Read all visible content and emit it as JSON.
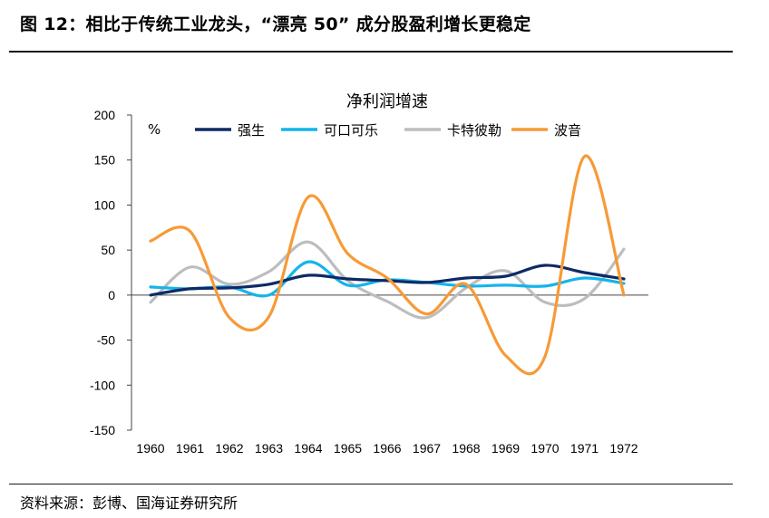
{
  "figure_title": "图 12：相比于传统工业龙头，“漂亮 50” 成分股盈利增长更稳定",
  "source": "资料来源：彭博、国海证券研究所",
  "chart_data": {
    "type": "line",
    "title": "净利润增速",
    "ylabel": "%",
    "ylim": [
      -150,
      200
    ],
    "yticks": [
      200,
      150,
      100,
      50,
      0,
      -50,
      -100,
      -150
    ],
    "x": [
      "1960",
      "1961",
      "1962",
      "1963",
      "1964",
      "1965",
      "1966",
      "1967",
      "1968",
      "1969",
      "1970",
      "1971",
      "1972"
    ],
    "legend_position": "top",
    "grid": false,
    "series": [
      {
        "name": "强生",
        "color": "#0d2a66",
        "values": [
          0,
          7,
          8,
          12,
          22,
          18,
          16,
          14,
          19,
          21,
          33,
          25,
          18
        ]
      },
      {
        "name": "可口可乐",
        "color": "#14b4ec",
        "values": [
          9,
          7,
          9,
          0,
          37,
          11,
          17,
          14,
          10,
          11,
          10,
          19,
          13
        ]
      },
      {
        "name": "卡特彼勒",
        "color": "#bdbdbd",
        "values": [
          -8,
          31,
          12,
          26,
          59,
          16,
          -7,
          -25,
          8,
          27,
          -8,
          -4,
          51
        ]
      },
      {
        "name": "波音",
        "color": "#f79a36",
        "values": [
          60,
          71,
          -25,
          -24,
          109,
          46,
          19,
          -21,
          12,
          -67,
          -68,
          154,
          0
        ]
      }
    ]
  }
}
